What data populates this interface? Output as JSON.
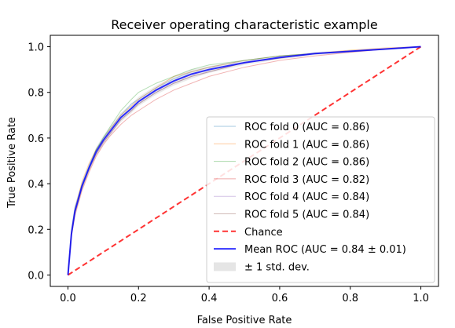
{
  "chart_data": {
    "type": "line",
    "title": "Receiver operating characteristic example",
    "xlabel": "False Positive Rate",
    "ylabel": "True Positive Rate",
    "xlim": [
      -0.05,
      1.05
    ],
    "ylim": [
      -0.05,
      1.05
    ],
    "xticks": [
      0.0,
      0.2,
      0.4,
      0.6,
      0.8,
      1.0
    ],
    "yticks": [
      0.0,
      0.2,
      0.4,
      0.6,
      0.8,
      1.0
    ],
    "tick_labels_x": [
      "0.0",
      "0.2",
      "0.4",
      "0.6",
      "0.8",
      "1.0"
    ],
    "tick_labels_y": [
      "0.0",
      "0.2",
      "0.4",
      "0.6",
      "0.8",
      "1.0"
    ],
    "grid": false,
    "legend_position": "lower-right",
    "series": [
      {
        "name": "ROC fold 0 (AUC = 0.86)",
        "color": "#1f77b4",
        "kind": "fold",
        "x": [
          0,
          0.01,
          0.02,
          0.04,
          0.06,
          0.08,
          0.1,
          0.12,
          0.15,
          0.18,
          0.2,
          0.25,
          0.3,
          0.35,
          0.4,
          0.5,
          0.6,
          0.7,
          0.8,
          0.9,
          1.0
        ],
        "y": [
          0,
          0.2,
          0.3,
          0.4,
          0.48,
          0.55,
          0.6,
          0.64,
          0.7,
          0.75,
          0.77,
          0.82,
          0.86,
          0.89,
          0.91,
          0.94,
          0.96,
          0.97,
          0.98,
          0.99,
          1.0
        ]
      },
      {
        "name": "ROC fold 1 (AUC = 0.86)",
        "color": "#ff7f0e",
        "kind": "fold",
        "x": [
          0,
          0.01,
          0.02,
          0.04,
          0.06,
          0.08,
          0.1,
          0.12,
          0.15,
          0.18,
          0.2,
          0.25,
          0.3,
          0.35,
          0.4,
          0.5,
          0.6,
          0.7,
          0.8,
          0.9,
          1.0
        ],
        "y": [
          0,
          0.19,
          0.29,
          0.41,
          0.49,
          0.55,
          0.59,
          0.64,
          0.7,
          0.74,
          0.77,
          0.82,
          0.87,
          0.89,
          0.91,
          0.94,
          0.96,
          0.97,
          0.985,
          0.995,
          1.0
        ]
      },
      {
        "name": "ROC fold 2 (AUC = 0.86)",
        "color": "#2ca02c",
        "kind": "fold",
        "x": [
          0,
          0.01,
          0.02,
          0.04,
          0.06,
          0.08,
          0.1,
          0.12,
          0.15,
          0.18,
          0.2,
          0.25,
          0.3,
          0.35,
          0.4,
          0.5,
          0.6,
          0.7,
          0.8,
          0.9,
          1.0
        ],
        "y": [
          0,
          0.18,
          0.28,
          0.39,
          0.47,
          0.55,
          0.6,
          0.65,
          0.72,
          0.77,
          0.8,
          0.84,
          0.87,
          0.9,
          0.92,
          0.94,
          0.96,
          0.97,
          0.98,
          0.99,
          1.0
        ]
      },
      {
        "name": "ROC fold 3 (AUC = 0.82)",
        "color": "#d62728",
        "kind": "fold",
        "x": [
          0,
          0.01,
          0.02,
          0.04,
          0.06,
          0.08,
          0.1,
          0.12,
          0.15,
          0.18,
          0.2,
          0.25,
          0.3,
          0.35,
          0.4,
          0.5,
          0.6,
          0.7,
          0.8,
          0.9,
          1.0
        ],
        "y": [
          0,
          0.17,
          0.26,
          0.37,
          0.45,
          0.52,
          0.57,
          0.61,
          0.66,
          0.7,
          0.72,
          0.77,
          0.81,
          0.84,
          0.87,
          0.91,
          0.94,
          0.96,
          0.975,
          0.99,
          1.0
        ]
      },
      {
        "name": "ROC fold 4 (AUC = 0.84)",
        "color": "#9467bd",
        "kind": "fold",
        "x": [
          0,
          0.01,
          0.02,
          0.04,
          0.06,
          0.08,
          0.1,
          0.12,
          0.15,
          0.18,
          0.2,
          0.25,
          0.3,
          0.35,
          0.4,
          0.5,
          0.6,
          0.7,
          0.8,
          0.9,
          1.0
        ],
        "y": [
          0,
          0.18,
          0.28,
          0.39,
          0.47,
          0.53,
          0.58,
          0.62,
          0.68,
          0.72,
          0.75,
          0.8,
          0.84,
          0.87,
          0.89,
          0.93,
          0.95,
          0.97,
          0.98,
          0.99,
          1.0
        ]
      },
      {
        "name": "ROC fold 5 (AUC = 0.84)",
        "color": "#8c564b",
        "kind": "fold",
        "x": [
          0,
          0.01,
          0.02,
          0.04,
          0.06,
          0.08,
          0.1,
          0.12,
          0.15,
          0.18,
          0.2,
          0.25,
          0.3,
          0.35,
          0.4,
          0.5,
          0.6,
          0.7,
          0.8,
          0.9,
          1.0
        ],
        "y": [
          0,
          0.18,
          0.27,
          0.38,
          0.46,
          0.53,
          0.58,
          0.62,
          0.68,
          0.72,
          0.75,
          0.8,
          0.84,
          0.87,
          0.89,
          0.93,
          0.95,
          0.97,
          0.98,
          0.99,
          1.0
        ]
      },
      {
        "name": "Chance",
        "color": "#ff0000",
        "kind": "chance",
        "x": [
          0,
          1
        ],
        "y": [
          0,
          1
        ]
      },
      {
        "name": "Mean ROC (AUC = 0.84 ± 0.01)",
        "color": "#0000ff",
        "kind": "mean",
        "x": [
          0,
          0.01,
          0.02,
          0.04,
          0.06,
          0.08,
          0.1,
          0.12,
          0.15,
          0.18,
          0.2,
          0.25,
          0.3,
          0.35,
          0.4,
          0.5,
          0.6,
          0.7,
          0.8,
          0.9,
          1.0
        ],
        "y": [
          0,
          0.18,
          0.28,
          0.39,
          0.47,
          0.54,
          0.59,
          0.63,
          0.69,
          0.73,
          0.76,
          0.81,
          0.85,
          0.88,
          0.9,
          0.93,
          0.953,
          0.97,
          0.98,
          0.99,
          1.0
        ]
      },
      {
        "name": "± 1 std. dev.",
        "color": "#aaaaaa",
        "kind": "band",
        "x": [
          0,
          0.01,
          0.02,
          0.04,
          0.06,
          0.08,
          0.1,
          0.12,
          0.15,
          0.18,
          0.2,
          0.25,
          0.3,
          0.35,
          0.4,
          0.5,
          0.6,
          0.7,
          0.8,
          0.9,
          1.0
        ],
        "lower": [
          0,
          0.17,
          0.265,
          0.375,
          0.455,
          0.52,
          0.57,
          0.61,
          0.67,
          0.71,
          0.74,
          0.79,
          0.83,
          0.86,
          0.885,
          0.92,
          0.945,
          0.963,
          0.975,
          0.987,
          1.0
        ],
        "upper": [
          0,
          0.19,
          0.295,
          0.405,
          0.485,
          0.56,
          0.61,
          0.65,
          0.71,
          0.75,
          0.78,
          0.83,
          0.87,
          0.9,
          0.915,
          0.94,
          0.96,
          0.977,
          0.985,
          0.993,
          1.0
        ]
      }
    ]
  }
}
